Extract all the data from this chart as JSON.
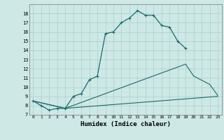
{
  "title": "",
  "xlabel": "Humidex (Indice chaleur)",
  "xlim": [
    -0.5,
    23.5
  ],
  "ylim": [
    7,
    19
  ],
  "yticks": [
    7,
    8,
    9,
    10,
    11,
    12,
    13,
    14,
    15,
    16,
    17,
    18
  ],
  "xticks": [
    0,
    1,
    2,
    3,
    4,
    5,
    6,
    7,
    8,
    9,
    10,
    11,
    12,
    13,
    14,
    15,
    16,
    17,
    18,
    19,
    20,
    21,
    22,
    23
  ],
  "background_color": "#cde8e5",
  "grid_color": "#aacfcc",
  "line_color": "#1a6b6b",
  "line1_x": [
    0,
    1,
    2,
    3,
    4,
    5,
    6,
    7,
    8,
    9,
    10,
    11,
    12,
    13,
    14,
    15,
    16,
    17,
    18,
    19
  ],
  "line1_y": [
    8.5,
    8.0,
    7.5,
    7.7,
    7.7,
    9.0,
    9.3,
    10.8,
    11.2,
    15.8,
    16.0,
    17.0,
    17.5,
    18.3,
    17.8,
    17.8,
    16.7,
    16.5,
    15.0,
    14.2
  ],
  "line2_x": [
    0,
    4,
    19,
    20,
    22,
    23
  ],
  "line2_y": [
    8.5,
    7.7,
    12.5,
    11.2,
    10.3,
    9.1
  ],
  "line3_x": [
    0,
    4,
    23
  ],
  "line3_y": [
    8.5,
    7.7,
    9.0
  ]
}
